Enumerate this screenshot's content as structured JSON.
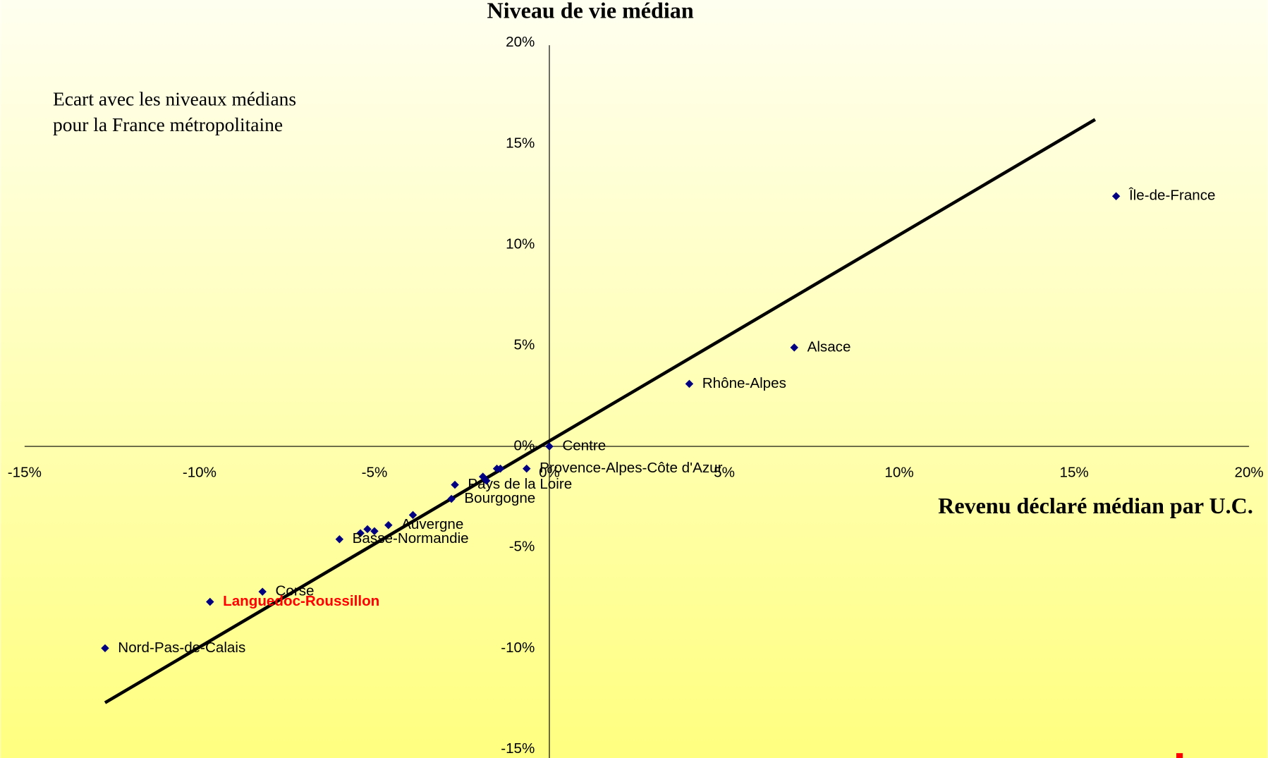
{
  "chart_data": {
    "type": "scatter",
    "title": "Niveau de vie médian",
    "x_label": "Revenu déclaré médian par U.C.",
    "annotation": [
      "Ecart avec les niveaux médians",
      "pour la France métropolitaine"
    ],
    "xlim": [
      -15,
      20
    ],
    "ylim": [
      -15,
      20
    ],
    "xticks": [
      {
        "value": -15,
        "label": "-15%"
      },
      {
        "value": -10,
        "label": "-10%"
      },
      {
        "value": -5,
        "label": "-5%"
      },
      {
        "value": 0,
        "label": "0%"
      },
      {
        "value": 5,
        "label": "5%"
      },
      {
        "value": 10,
        "label": "10%"
      },
      {
        "value": 15,
        "label": "15%"
      },
      {
        "value": 20,
        "label": "20%"
      }
    ],
    "yticks": [
      {
        "value": -15,
        "label": "-15%"
      },
      {
        "value": -10,
        "label": "-10%"
      },
      {
        "value": -5,
        "label": "-5%"
      },
      {
        "value": 0,
        "label": "0%"
      },
      {
        "value": 5,
        "label": "5%"
      },
      {
        "value": 10,
        "label": "10%"
      },
      {
        "value": 15,
        "label": "15%"
      },
      {
        "value": 20,
        "label": "20%"
      }
    ],
    "color": "#000080",
    "x": [
      16.2,
      7.0,
      4.0,
      0.0,
      -0.65,
      -2.7,
      -2.8,
      -1.5,
      -1.4,
      -1.9,
      -1.8,
      -3.9,
      -4.6,
      -5.0,
      -5.2,
      -5.4,
      -6.0,
      -8.2,
      -9.7,
      -12.7
    ],
    "values": [
      12.4,
      4.9,
      3.1,
      0.0,
      -1.1,
      -1.9,
      -2.6,
      -1.1,
      -1.1,
      -1.5,
      -1.7,
      -3.4,
      -3.9,
      -4.2,
      -4.1,
      -4.3,
      -4.6,
      -7.2,
      -7.7,
      -10.0
    ],
    "labels": [
      "Île-de-France",
      "Alsace",
      "Rhône-Alpes",
      "Centre",
      "Provence-Alpes-Côte d'Azur",
      "Pays de la Loire",
      "Bourgogne",
      null,
      null,
      null,
      null,
      null,
      "Auvergne",
      null,
      null,
      null,
      "Basse-Normandie",
      "Corse",
      "Languedoc-Roussillon",
      "Nord-Pas-de-Calais"
    ],
    "highlight": {
      "index": 18,
      "color": "#ff0000"
    },
    "trendline": {
      "x": [
        -12.7,
        15.6
      ],
      "y": [
        -12.7,
        16.2
      ],
      "color": "#000000"
    }
  }
}
